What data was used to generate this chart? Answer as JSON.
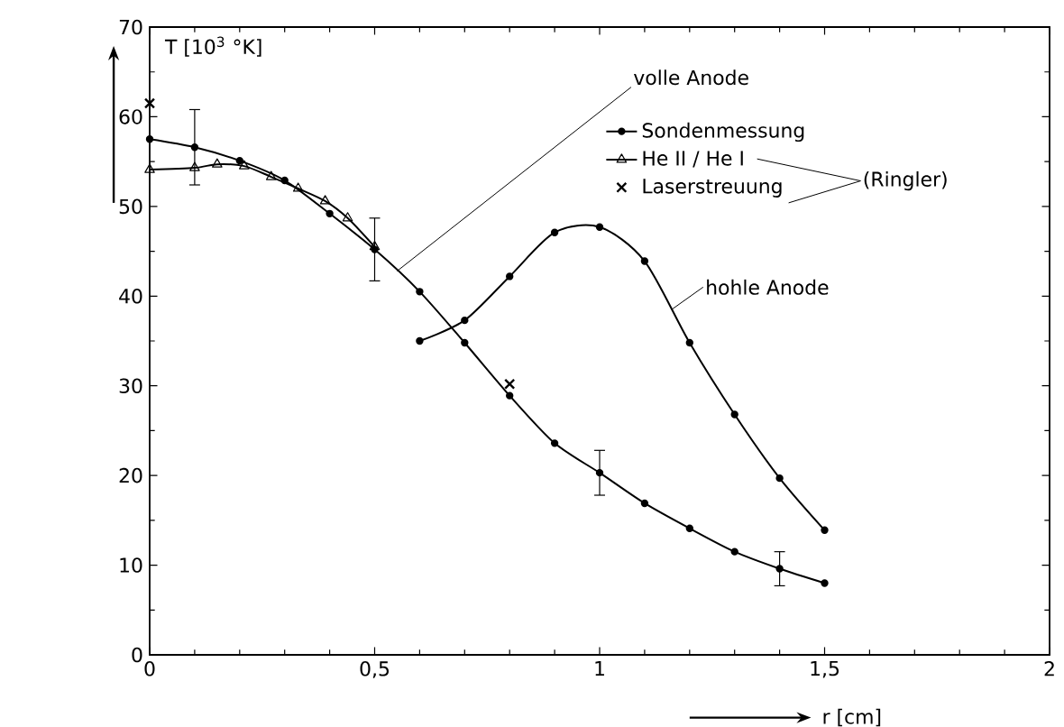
{
  "chart_data": {
    "type": "line",
    "xlabel": "r [cm]",
    "ylabel": "T [10$^{3}$ °K]",
    "xlim": [
      0,
      2
    ],
    "ylim": [
      0,
      70
    ],
    "xticks": [
      0,
      {
        "value": 0.5,
        "label": "0,5"
      },
      1,
      {
        "value": 1.5,
        "label": "1,5"
      },
      2
    ],
    "yticks": [
      0,
      10,
      20,
      30,
      40,
      50,
      60,
      70
    ],
    "legend": "top right",
    "grid": false,
    "line_style": "solid",
    "series": [
      {
        "name": "Sondenmessung",
        "color": "#000000",
        "marker": "circle",
        "x": [
          0,
          0.1,
          0.2,
          0.3,
          0.4,
          0.5,
          0.6,
          0.7,
          0.8,
          0.9,
          1.0,
          1.1,
          1.2,
          1.3,
          1.4,
          1.5
        ],
        "values": [
          57.5,
          56.6,
          55.1,
          52.9,
          49.2,
          45.2,
          40.5,
          34.8,
          28.9,
          23.6,
          20.3,
          16.9,
          14.1,
          11.5,
          9.6,
          8.0
        ],
        "errors": [
          null,
          4.2,
          null,
          null,
          null,
          3.5,
          null,
          null,
          null,
          null,
          2.5,
          null,
          null,
          null,
          1.9,
          null
        ]
      },
      {
        "name": "He II / He I",
        "color": "#000000",
        "marker": "triangle",
        "x": [
          0,
          0.1,
          0.15,
          0.21,
          0.27,
          0.33,
          0.39,
          0.44,
          0.5
        ],
        "values": [
          54.1,
          54.3,
          54.7,
          54.5,
          53.3,
          52.0,
          50.6,
          48.7,
          45.5
        ]
      },
      {
        "name": "Laserstreuung",
        "color": "#000000",
        "type": "scatter",
        "marker": "cross",
        "x": [
          0,
          0.8
        ],
        "values": [
          61.5,
          30.2
        ]
      },
      {
        "color": "#000000",
        "marker": "circle",
        "x": [
          0.6,
          0.7,
          0.8,
          0.9,
          1.0,
          1.1,
          1.2,
          1.3,
          1.4,
          1.5
        ],
        "values": [
          35.0,
          37.3,
          42.2,
          47.1,
          47.7,
          43.9,
          34.8,
          26.8,
          19.7,
          13.9
        ]
      }
    ],
    "annotations": [
      {
        "text": "volle Anode",
        "x": 0.55,
        "y": 42.8
      },
      {
        "text": "hohle Anode",
        "x": 1.16,
        "y": 38.5
      },
      "(Ringler)"
    ]
  }
}
